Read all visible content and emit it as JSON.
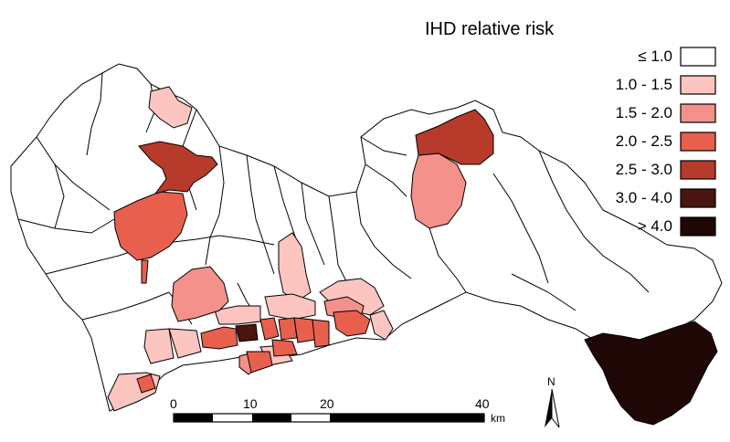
{
  "legend": {
    "title": "IHD relative risk",
    "items": [
      {
        "label": "≤ 1.0",
        "color": "#ffffff"
      },
      {
        "label": "1.0 - 1.5",
        "color": "#fcc5c0"
      },
      {
        "label": "1.5 - 2.0",
        "color": "#f4918a"
      },
      {
        "label": "2.0 - 2.5",
        "color": "#e8604d"
      },
      {
        "label": "2.5 - 3.0",
        "color": "#b73a2a"
      },
      {
        "label": "3.0 - 4.0",
        "color": "#4a1410"
      },
      {
        "label": "> 4.0",
        "color": "#1f0706"
      }
    ]
  },
  "scalebar": {
    "ticks": [
      "0",
      "10",
      "20",
      "40"
    ],
    "unit": "km"
  },
  "north_arrow": {
    "label": "N",
    "icon": "north-arrow-icon"
  },
  "map": {
    "region_count_note_hidden": false
  }
}
